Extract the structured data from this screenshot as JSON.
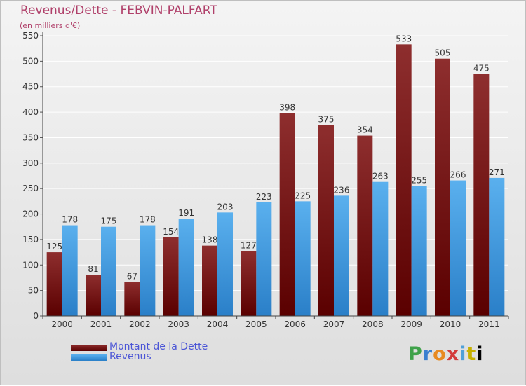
{
  "title": "Revenus/Dette - FEBVIN-PALFART",
  "subtitle": "(en milliers d'€)",
  "logo_text": "Proxiti",
  "colors": {
    "dette": "#6b0f0f",
    "revenus": "#3b9ce6",
    "title": "#b0406a",
    "legend_text": "#4b55d6"
  },
  "chart_data": {
    "type": "bar",
    "title": "Revenus/Dette - FEBVIN-PALFART",
    "subtitle": "(en milliers d'€)",
    "xlabel": "",
    "ylabel": "",
    "ylim": [
      0,
      550
    ],
    "yticks": [
      0,
      50,
      100,
      150,
      200,
      250,
      300,
      350,
      400,
      450,
      500,
      550
    ],
    "grid": true,
    "legend_position": "bottom-left",
    "categories": [
      "2000",
      "2001",
      "2002",
      "2003",
      "2004",
      "2005",
      "2006",
      "2007",
      "2008",
      "2009",
      "2010",
      "2011"
    ],
    "series": [
      {
        "name": "Montant de la Dette",
        "values": [
          125,
          81,
          67,
          154,
          138,
          127,
          398,
          375,
          354,
          533,
          505,
          475
        ]
      },
      {
        "name": "Revenus",
        "values": [
          178,
          175,
          178,
          191,
          203,
          223,
          225,
          236,
          263,
          255,
          266,
          271
        ]
      }
    ]
  }
}
